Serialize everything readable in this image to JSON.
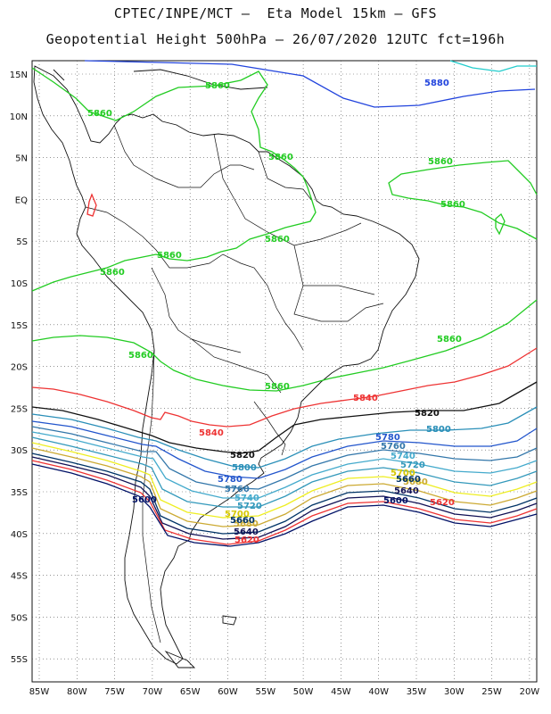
{
  "title": {
    "line1": "CPTEC/INPE/MCT –  Eta Model 15km – GFS",
    "line2": "Geopotential Height 500hPa – 26/07/2020 12UTC fct=196h"
  },
  "axes": {
    "lat_ticks": [
      "15N",
      "10N",
      "5N",
      "EQ",
      "5S",
      "10S",
      "15S",
      "20S",
      "25S",
      "30S",
      "35S",
      "40S",
      "45S",
      "50S",
      "55S"
    ],
    "lon_ticks": [
      "85W",
      "80W",
      "75W",
      "70W",
      "65W",
      "60W",
      "55W",
      "50W",
      "45W",
      "40W",
      "35W",
      "30W",
      "25W",
      "20W"
    ]
  },
  "contours": [
    {
      "value": "5880",
      "color": "#2244dd"
    },
    {
      "value": "5860",
      "color": "#22cc22"
    },
    {
      "value": "5840",
      "color": "#ee3333"
    },
    {
      "value": "5820",
      "color": "#111111"
    },
    {
      "value": "5800",
      "color": "#2a8fb8"
    },
    {
      "value": "5780",
      "color": "#2255cc"
    },
    {
      "value": "5760",
      "color": "#3377aa"
    },
    {
      "value": "5740",
      "color": "#44aacc"
    },
    {
      "value": "5720",
      "color": "#3399bb"
    },
    {
      "value": "5700",
      "color": "#eeee22"
    },
    {
      "value": "5680",
      "color": "#ccaa33"
    },
    {
      "value": "5660",
      "color": "#003366"
    },
    {
      "value": "5640",
      "color": "#111155"
    },
    {
      "value": "5620",
      "color": "#ee3333"
    },
    {
      "value": "5600",
      "color": "#001166"
    }
  ],
  "labels": {
    "green": [
      "5860",
      "5860",
      "5860",
      "5860",
      "5860",
      "5860",
      "5860",
      "5860",
      "5860",
      "5860",
      "5860"
    ],
    "blue5880": "5880",
    "red5840a": "5840",
    "red5840b": "5840",
    "black5820a": "5820",
    "black5820b": "5820",
    "l5800a": "5800",
    "l5800b": "5800",
    "l5780a": "5780",
    "l5780b": "5780",
    "l5760a": "5760",
    "l5760b": "5760",
    "l5740a": "5740",
    "l5740b": "5740",
    "l5720a": "5720",
    "l5720b": "5720",
    "l5700a": "5700",
    "l5700b": "5700",
    "l5680a": "5680",
    "l5680b": "5680",
    "l5660a": "5660",
    "l5660b": "5660",
    "l5640a": "5640",
    "l5640b": "5640",
    "l5620a": "5620",
    "l5620b": "5620",
    "l5600a": "5600",
    "l5600b": "5600"
  }
}
